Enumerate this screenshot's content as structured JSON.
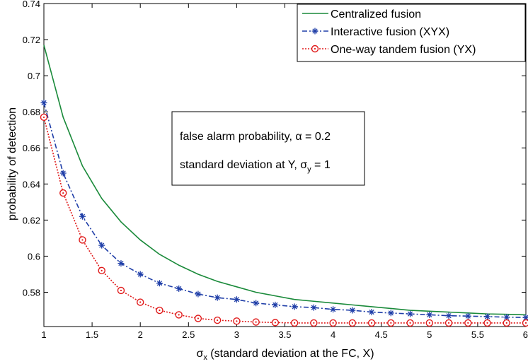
{
  "chart_data": {
    "type": "line",
    "xlabel": "σx (standard deviation at the FC, X)",
    "xlabel_parts": {
      "main": "σ",
      "sub": "x",
      "rest": " (standard deviation at the FC, X)"
    },
    "ylabel": "probability of detection",
    "xlim": [
      1,
      6
    ],
    "ylim": [
      0.561,
      0.74
    ],
    "xticks": [
      1,
      1.5,
      2,
      2.5,
      3,
      3.5,
      4,
      4.5,
      5,
      5.5,
      6
    ],
    "xtick_labels": [
      "1",
      "1.5",
      "2",
      "2.5",
      "3",
      "3.5",
      "4",
      "4.5",
      "5",
      "5.5",
      "6"
    ],
    "yticks": [
      0.58,
      0.6,
      0.62,
      0.64,
      0.66,
      0.68,
      0.7,
      0.72,
      0.74
    ],
    "ytick_labels": [
      "0.58",
      "0.6",
      "0.62",
      "0.64",
      "0.66",
      "0.68",
      "0.7",
      "0.72",
      "0.74"
    ],
    "grid": false,
    "legend_position": "top-right",
    "series": [
      {
        "name": "Centralized fusion",
        "color": "#1a8a3a",
        "style": "solid",
        "marker": "none",
        "x": [
          1,
          1.2,
          1.4,
          1.6,
          1.8,
          2,
          2.2,
          2.4,
          2.6,
          2.8,
          3,
          3.2,
          3.4,
          3.6,
          3.8,
          4,
          4.2,
          4.4,
          4.6,
          4.8,
          5,
          5.2,
          5.4,
          5.6,
          5.8,
          6
        ],
        "y": [
          0.717,
          0.677,
          0.65,
          0.632,
          0.619,
          0.609,
          0.601,
          0.595,
          0.59,
          0.586,
          0.583,
          0.58,
          0.578,
          0.576,
          0.575,
          0.574,
          0.573,
          0.572,
          0.571,
          0.57,
          0.5695,
          0.569,
          0.5685,
          0.568,
          0.5678,
          0.5675
        ]
      },
      {
        "name": "Interactive fusion (XYX)",
        "color": "#1f3ea8",
        "style": "dashdot",
        "marker": "star",
        "x": [
          1,
          1.2,
          1.4,
          1.6,
          1.8,
          2,
          2.2,
          2.4,
          2.6,
          2.8,
          3,
          3.2,
          3.4,
          3.6,
          3.8,
          4,
          4.2,
          4.4,
          4.6,
          4.8,
          5,
          5.2,
          5.4,
          5.6,
          5.8,
          6
        ],
        "y": [
          0.685,
          0.646,
          0.622,
          0.606,
          0.596,
          0.59,
          0.585,
          0.582,
          0.579,
          0.577,
          0.576,
          0.574,
          0.573,
          0.572,
          0.5715,
          0.5705,
          0.57,
          0.569,
          0.5685,
          0.568,
          0.5675,
          0.567,
          0.5668,
          0.5665,
          0.5662,
          0.566
        ]
      },
      {
        "name": "One-way tandem fusion (YX)",
        "color": "#e01b1b",
        "style": "dotted",
        "marker": "circle",
        "x": [
          1,
          1.2,
          1.4,
          1.6,
          1.8,
          2,
          2.2,
          2.4,
          2.6,
          2.8,
          3,
          3.2,
          3.4,
          3.6,
          3.8,
          4,
          4.2,
          4.4,
          4.6,
          4.8,
          5,
          5.2,
          5.4,
          5.6,
          5.8,
          6
        ],
        "y": [
          0.677,
          0.635,
          0.609,
          0.592,
          0.581,
          0.5745,
          0.57,
          0.5675,
          0.5655,
          0.5645,
          0.564,
          0.5635,
          0.5632,
          0.563,
          0.563,
          0.563,
          0.563,
          0.563,
          0.563,
          0.563,
          0.563,
          0.563,
          0.563,
          0.563,
          0.563,
          0.563
        ]
      }
    ],
    "annotation": {
      "line1": "false alarm probability, α = 0.2",
      "line2_main": "standard deviation at Y, σ",
      "line2_sub": "y",
      "line2_rest": " = 1"
    }
  }
}
